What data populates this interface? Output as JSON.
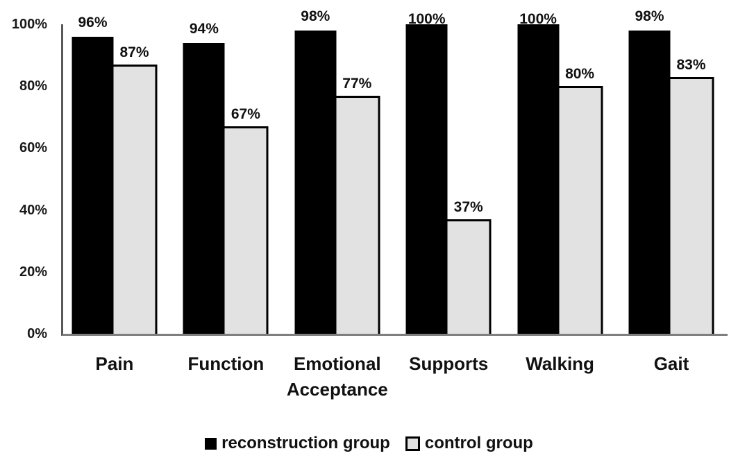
{
  "chart_data": {
    "type": "bar",
    "title": "",
    "categories": [
      "Pain",
      "Function",
      "Emotional Acceptance",
      "Supports",
      "Walking",
      "Gait"
    ],
    "series": [
      {
        "name": "reconstruction group",
        "color": "#000000",
        "values": [
          96,
          94,
          98,
          100,
          100,
          98
        ]
      },
      {
        "name": "control group",
        "color": "#e2e2e2",
        "border_color": "#000000",
        "values": [
          87,
          67,
          77,
          37,
          80,
          83
        ]
      }
    ],
    "value_suffix": "%",
    "data_labels_visible": true,
    "y_axis": {
      "ticks": [
        {
          "label": "100%",
          "value": 100
        },
        {
          "label": "80%",
          "value": 80
        },
        {
          "label": "60%",
          "value": 60
        },
        {
          "label": "40%",
          "value": 40
        },
        {
          "label": "20%",
          "value": 20
        },
        {
          "label": "0%",
          "value": 0
        }
      ],
      "ylim": [
        0,
        100
      ]
    },
    "grid": false,
    "legend_position": "bottom",
    "colors": {
      "axis_vertical": "#595959",
      "axis_horizontal": "#7f7f7f",
      "background": "#ffffff",
      "text": "#111111"
    }
  }
}
